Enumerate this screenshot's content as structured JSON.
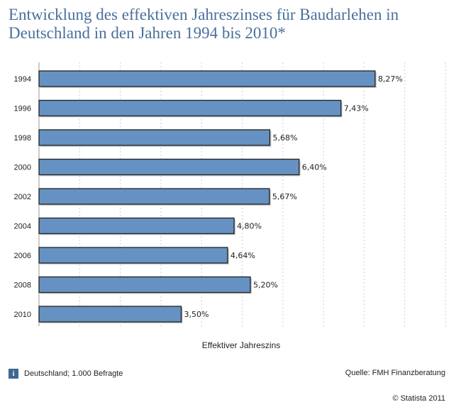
{
  "title": "Entwicklung des effektiven Jahreszinses für Baudarlehen in Deutschland in den Jahren 1994 bis 2010*",
  "footer": {
    "info_icon": "info-icon",
    "info_letter": "i",
    "note": "Deutschland; 1.000 Befragte",
    "source": "Quelle: FMH Finanzberatung",
    "copyright": "© Statista 2011"
  },
  "colors": {
    "bar": "#6592c2",
    "bar_stroke": "#222222",
    "title": "#4a6f9c"
  },
  "chart_data": {
    "type": "bar",
    "orientation": "horizontal",
    "categories": [
      "1994",
      "1996",
      "1998",
      "2000",
      "2002",
      "2004",
      "2006",
      "2008",
      "2010"
    ],
    "values": [
      8.27,
      7.43,
      5.68,
      6.4,
      5.67,
      4.8,
      4.64,
      5.2,
      3.5
    ],
    "value_labels": [
      "8,27%",
      "7,43%",
      "5,68%",
      "6,40%",
      "5,67%",
      "4,80%",
      "4,64%",
      "5,20%",
      "3,50%"
    ],
    "xlabel": "Effektiver Jahreszins",
    "ylabel": "",
    "xlim": [
      0,
      10
    ],
    "grid": true
  }
}
